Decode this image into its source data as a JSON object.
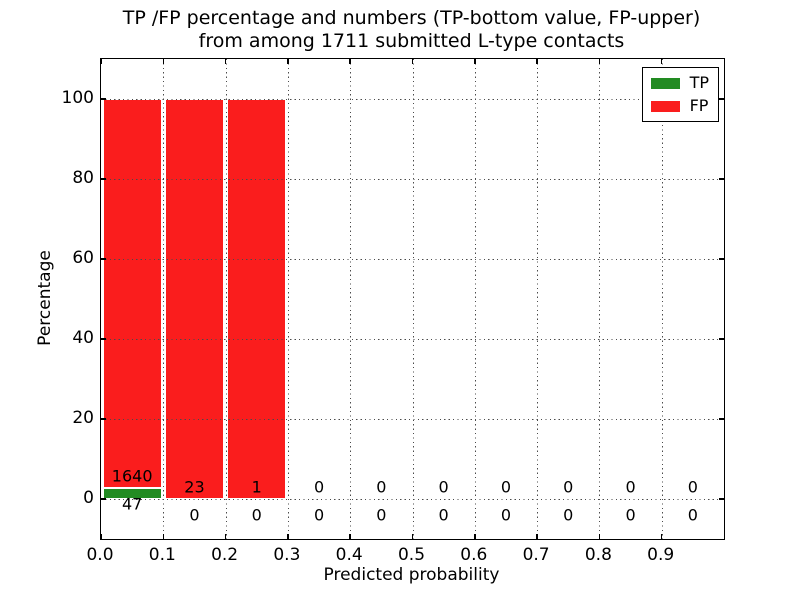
{
  "title": {
    "line1": "TP /FP percentage and numbers (TP-bottom value, FP-upper)",
    "line2": "from among 1711 submitted L-type contacts"
  },
  "colors": {
    "tp_green": "#228b22",
    "fp_red": "#fa1d1d",
    "grid": "#4a4a4a",
    "axis": "#000000",
    "background": "#ffffff",
    "text": "#000000"
  },
  "chart_data": {
    "type": "bar",
    "stacked": true,
    "title": "TP /FP percentage and numbers (TP-bottom value, FP-upper) from among 1711 submitted L-type contacts",
    "subtitle_total_contacts": 1711,
    "xlabel": "Predicted probability",
    "ylabel": "Percentage",
    "xlim": [
      0.0,
      1.0
    ],
    "ylim": [
      -10,
      110
    ],
    "x_tick_labels": [
      "0.0",
      "0.1",
      "0.2",
      "0.3",
      "0.4",
      "0.5",
      "0.6",
      "0.7",
      "0.8",
      "0.9"
    ],
    "x_tick_values": [
      0.0,
      0.1,
      0.2,
      0.3,
      0.4,
      0.5,
      0.6,
      0.7,
      0.8,
      0.9
    ],
    "y_tick_labels": [
      "0",
      "20",
      "40",
      "60",
      "80",
      "100"
    ],
    "y_tick_values": [
      0,
      20,
      40,
      60,
      80,
      100
    ],
    "grid": "dotted",
    "legend": {
      "position": "upper right",
      "entries": [
        {
          "label": "TP",
          "color": "#228b22"
        },
        {
          "label": "FP",
          "color": "#fa1d1d"
        }
      ]
    },
    "bins": [
      {
        "range": [
          0.0,
          0.1
        ],
        "tp": 47,
        "fp": 1640
      },
      {
        "range": [
          0.1,
          0.2
        ],
        "tp": 0,
        "fp": 23
      },
      {
        "range": [
          0.2,
          0.3
        ],
        "tp": 0,
        "fp": 1
      },
      {
        "range": [
          0.3,
          0.4
        ],
        "tp": 0,
        "fp": 0
      },
      {
        "range": [
          0.4,
          0.5
        ],
        "tp": 0,
        "fp": 0
      },
      {
        "range": [
          0.5,
          0.6
        ],
        "tp": 0,
        "fp": 0
      },
      {
        "range": [
          0.6,
          0.7
        ],
        "tp": 0,
        "fp": 0
      },
      {
        "range": [
          0.7,
          0.8
        ],
        "tp": 0,
        "fp": 0
      },
      {
        "range": [
          0.8,
          0.9
        ],
        "tp": 0,
        "fp": 0
      },
      {
        "range": [
          0.9,
          1.0
        ],
        "tp": 0,
        "fp": 0
      }
    ],
    "series": [
      {
        "name": "TP",
        "values_pct": [
          2.79,
          0,
          0,
          0,
          0,
          0,
          0,
          0,
          0,
          0
        ]
      },
      {
        "name": "FP",
        "values_pct": [
          97.21,
          100,
          100,
          0,
          0,
          0,
          0,
          0,
          0,
          0
        ]
      }
    ]
  }
}
